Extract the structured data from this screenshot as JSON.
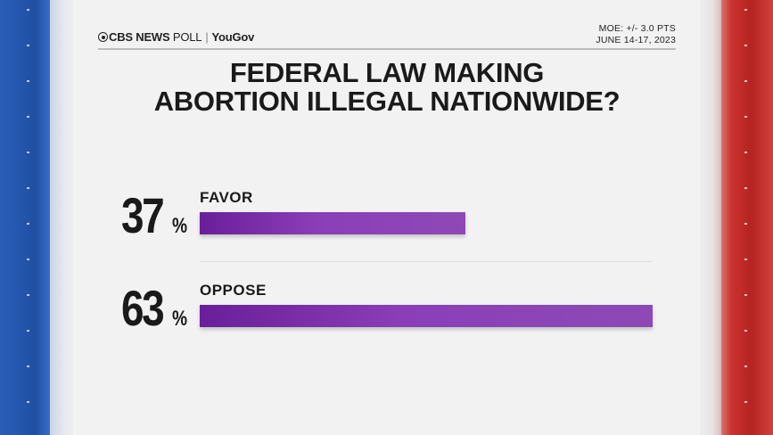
{
  "header": {
    "brand_network": "CBS NEWS",
    "brand_poll": "POLL",
    "brand_partner": "YouGov",
    "moe": "MOE: +/- 3.0 PTS",
    "dates": "JUNE 14-17, 2023"
  },
  "colors": {
    "bar": "#8a3fb8",
    "left_stripe": "#1f4fa3",
    "right_stripe": "#b52421"
  },
  "chart_data": {
    "type": "bar",
    "title": "FEDERAL LAW MAKING ABORTION ILLEGAL NATIONWIDE?",
    "title_lines": [
      "FEDERAL LAW MAKING",
      "ABORTION ILLEGAL NATIONWIDE?"
    ],
    "categories": [
      "FAVOR",
      "OPPOSE"
    ],
    "values": [
      37,
      63
    ],
    "value_labels": [
      "37",
      "63"
    ],
    "unit": "%",
    "orientation": "horizontal",
    "xlim": [
      0,
      63
    ]
  }
}
